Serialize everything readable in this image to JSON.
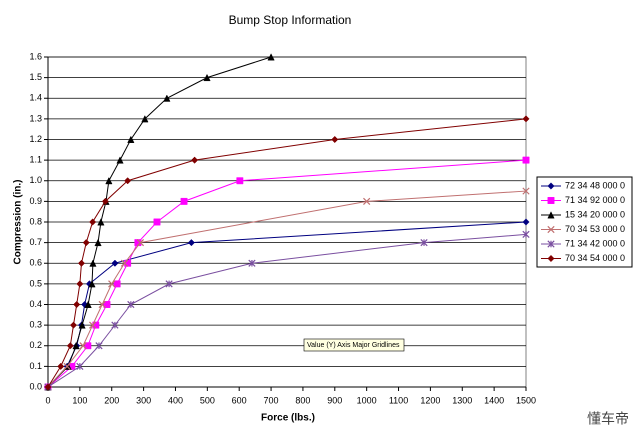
{
  "chart_data": {
    "type": "line",
    "title": "Bump Stop Information",
    "x_label": "Force (lbs.)",
    "y_label": "Compression (in.)",
    "xlim": [
      0,
      1500
    ],
    "xticks": [
      0,
      100,
      200,
      300,
      400,
      500,
      600,
      700,
      800,
      900,
      1000,
      1100,
      1200,
      1300,
      1400,
      1500
    ],
    "ylim": [
      0,
      1.6
    ],
    "yticks": [
      {
        "value": 0,
        "label": "0.0"
      },
      0.1,
      0.2,
      0.3,
      0.4,
      0.5,
      0.6,
      0.7,
      0.8,
      0.9,
      {
        "value": 1,
        "label": "1.0"
      },
      1.1,
      1.2,
      1.3,
      1.4,
      1.5,
      1.6
    ],
    "grid": true,
    "legend": "right",
    "series": [
      {
        "name": "72 34 48 000 0",
        "color": "#000080",
        "marker": "diamond",
        "x": [
          0,
          60,
          90,
          105,
          115,
          130,
          210,
          450,
          1500
        ],
        "values": [
          0,
          0.1,
          0.2,
          0.3,
          0.4,
          0.5,
          0.6,
          0.7,
          0.8
        ]
      },
      {
        "name": "71 34 92 000 0",
        "color": "#ff00ff",
        "marker": "square",
        "x": [
          0,
          75,
          125,
          150,
          185,
          217,
          250,
          282,
          342,
          427,
          602,
          1500
        ],
        "values": [
          0,
          0.1,
          0.2,
          0.3,
          0.4,
          0.5,
          0.6,
          0.7,
          0.8,
          0.9,
          1,
          1.1
        ]
      },
      {
        "name": "15 34 20 000 0",
        "color": "#000000",
        "marker": "triangle",
        "x": [
          0,
          63,
          88,
          107,
          126,
          138,
          141,
          157,
          166,
          182,
          191,
          226,
          260,
          304,
          373,
          499,
          700
        ],
        "values": [
          0,
          0.1,
          0.2,
          0.3,
          0.4,
          0.5,
          0.6,
          0.7,
          0.8,
          0.9,
          1,
          1.1,
          1.2,
          1.3,
          1.4,
          1.5,
          1.6
        ]
      },
      {
        "name": "70 34 53 000 0",
        "color": "#c07070",
        "marker": "x",
        "x": [
          0,
          60,
          110,
          140,
          170,
          200,
          240,
          290,
          1000,
          1500
        ],
        "values": [
          0,
          0.1,
          0.2,
          0.3,
          0.4,
          0.5,
          0.6,
          0.7,
          0.9,
          0.95
        ]
      },
      {
        "name": "71 34 42 000 0",
        "color": "#7a4fa0",
        "marker": "star",
        "x": [
          0,
          100,
          160,
          210,
          260,
          380,
          640,
          1180,
          1500
        ],
        "values": [
          0,
          0.1,
          0.2,
          0.3,
          0.4,
          0.5,
          0.6,
          0.7,
          0.74
        ]
      },
      {
        "name": "70 34 54 000 0",
        "color": "#800000",
        "marker": "diamond",
        "x": [
          0,
          40,
          70,
          80,
          90,
          100,
          105,
          120,
          140,
          180,
          250,
          460,
          900,
          1500
        ],
        "values": [
          0,
          0.1,
          0.2,
          0.3,
          0.4,
          0.5,
          0.6,
          0.7,
          0.8,
          0.9,
          1,
          1.1,
          1.2,
          1.3
        ]
      }
    ],
    "tooltip": "Value (Y) Axis Major Gridlines"
  },
  "watermark": "懂车帝"
}
